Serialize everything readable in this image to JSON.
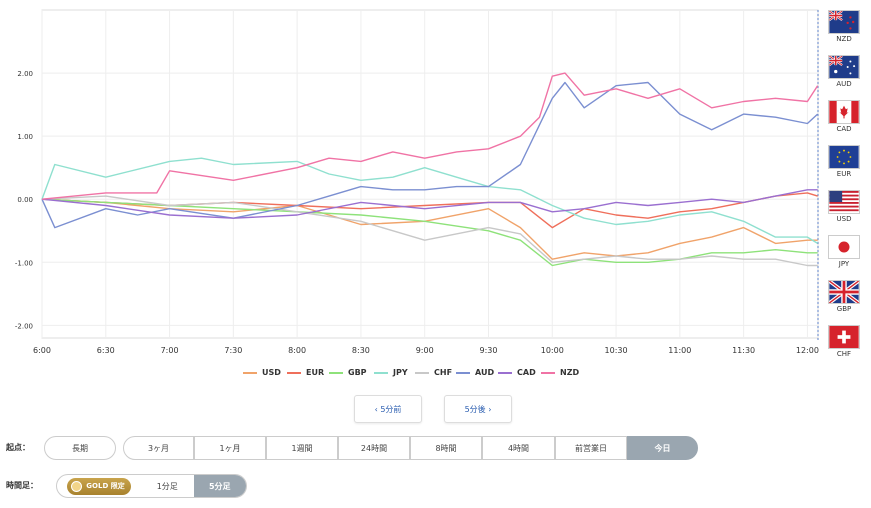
{
  "chart_data": {
    "type": "line",
    "x_ticks": [
      "6:00",
      "6:30",
      "7:00",
      "7:30",
      "8:00",
      "8:30",
      "9:00",
      "9:30",
      "10:00",
      "10:30",
      "11:00",
      "11:30",
      "12:00"
    ],
    "y_ticks": [
      "2.00",
      "1.00",
      "0.00",
      "-1.00",
      "-2.00"
    ],
    "ylim": [
      -2,
      2
    ],
    "xlim_hours": [
      6.0,
      12.083
    ],
    "grid": true,
    "legend_position": "bottom",
    "colors": {
      "USD": "#f0a36a",
      "EUR": "#ef6f5b",
      "GBP": "#8ee27a",
      "JPY": "#8fe0cf",
      "CHF": "#c8c8c8",
      "AUD": "#7b8fd1",
      "CAD": "#9a6fd0",
      "NZD": "#f073a5"
    },
    "series": [
      {
        "name": "USD",
        "x": [
          6.0,
          6.5,
          7.0,
          7.5,
          8.0,
          8.5,
          9.0,
          9.5,
          9.75,
          10.0,
          10.25,
          10.5,
          10.75,
          11.0,
          11.25,
          11.5,
          11.75,
          12.0,
          12.08
        ],
        "values": [
          0.0,
          -0.05,
          -0.15,
          -0.2,
          -0.1,
          -0.4,
          -0.35,
          -0.15,
          -0.45,
          -0.95,
          -0.85,
          -0.9,
          -0.85,
          -0.7,
          -0.6,
          -0.45,
          -0.7,
          -0.65,
          -0.65
        ]
      },
      {
        "name": "EUR",
        "x": [
          6.0,
          6.5,
          7.0,
          7.5,
          8.0,
          8.5,
          9.0,
          9.5,
          9.75,
          10.0,
          10.25,
          10.5,
          10.75,
          11.0,
          11.25,
          11.5,
          11.75,
          12.0,
          12.08
        ],
        "values": [
          0.0,
          -0.05,
          -0.1,
          -0.05,
          -0.1,
          -0.15,
          -0.1,
          -0.05,
          -0.05,
          -0.45,
          -0.15,
          -0.25,
          -0.3,
          -0.2,
          -0.15,
          -0.05,
          0.05,
          0.1,
          0.05
        ]
      },
      {
        "name": "GBP",
        "x": [
          6.0,
          6.5,
          7.0,
          7.5,
          8.0,
          8.5,
          9.0,
          9.5,
          9.75,
          10.0,
          10.25,
          10.5,
          10.75,
          11.0,
          11.25,
          11.5,
          11.75,
          12.0,
          12.08
        ],
        "values": [
          0.0,
          -0.05,
          -0.1,
          -0.15,
          -0.2,
          -0.25,
          -0.35,
          -0.5,
          -0.65,
          -1.05,
          -0.95,
          -1.0,
          -1.0,
          -0.95,
          -0.85,
          -0.85,
          -0.8,
          -0.85,
          -0.85
        ]
      },
      {
        "name": "JPY",
        "x": [
          6.0,
          6.1,
          6.5,
          7.0,
          7.25,
          7.5,
          8.0,
          8.25,
          8.5,
          8.75,
          9.0,
          9.25,
          9.5,
          9.75,
          10.0,
          10.25,
          10.5,
          10.75,
          11.0,
          11.25,
          11.5,
          11.75,
          12.0,
          12.08
        ],
        "values": [
          0.0,
          0.55,
          0.35,
          0.6,
          0.65,
          0.55,
          0.6,
          0.4,
          0.3,
          0.35,
          0.5,
          0.35,
          0.2,
          0.15,
          -0.1,
          -0.3,
          -0.4,
          -0.35,
          -0.25,
          -0.2,
          -0.35,
          -0.6,
          -0.6,
          -0.7
        ]
      },
      {
        "name": "CHF",
        "x": [
          6.0,
          6.5,
          7.0,
          7.5,
          8.0,
          8.5,
          9.0,
          9.5,
          9.75,
          10.0,
          10.25,
          10.5,
          10.75,
          11.0,
          11.25,
          11.5,
          11.75,
          12.0,
          12.08
        ],
        "values": [
          0.0,
          0.05,
          -0.1,
          -0.05,
          -0.2,
          -0.35,
          -0.65,
          -0.45,
          -0.55,
          -1.0,
          -0.95,
          -0.9,
          -0.95,
          -0.95,
          -0.9,
          -0.95,
          -0.95,
          -1.05,
          -1.05
        ]
      },
      {
        "name": "AUD",
        "x": [
          6.0,
          6.1,
          6.5,
          6.75,
          7.0,
          7.5,
          8.0,
          8.25,
          8.5,
          8.75,
          9.0,
          9.25,
          9.5,
          9.75,
          10.0,
          10.1,
          10.25,
          10.5,
          10.75,
          11.0,
          11.25,
          11.5,
          11.75,
          12.0,
          12.08
        ],
        "values": [
          0.0,
          -0.45,
          -0.15,
          -0.25,
          -0.15,
          -0.3,
          -0.1,
          0.05,
          0.2,
          0.15,
          0.15,
          0.2,
          0.2,
          0.55,
          1.6,
          1.85,
          1.45,
          1.8,
          1.85,
          1.35,
          1.1,
          1.35,
          1.3,
          1.2,
          1.35
        ]
      },
      {
        "name": "CAD",
        "x": [
          6.0,
          6.5,
          7.0,
          7.5,
          8.0,
          8.5,
          9.0,
          9.5,
          9.75,
          10.0,
          10.25,
          10.5,
          10.75,
          11.0,
          11.25,
          11.5,
          11.75,
          12.0,
          12.08
        ],
        "values": [
          0.0,
          -0.1,
          -0.25,
          -0.3,
          -0.25,
          -0.05,
          -0.15,
          -0.05,
          -0.05,
          -0.2,
          -0.15,
          -0.05,
          -0.1,
          -0.05,
          0.0,
          -0.05,
          0.05,
          0.15,
          0.15
        ]
      },
      {
        "name": "NZD",
        "x": [
          6.0,
          6.5,
          6.9,
          7.0,
          7.5,
          8.0,
          8.25,
          8.5,
          8.75,
          9.0,
          9.25,
          9.5,
          9.75,
          9.9,
          10.0,
          10.1,
          10.25,
          10.5,
          10.75,
          11.0,
          11.25,
          11.5,
          11.75,
          12.0,
          12.08
        ],
        "values": [
          0.0,
          0.1,
          0.1,
          0.45,
          0.3,
          0.5,
          0.65,
          0.6,
          0.75,
          0.65,
          0.75,
          0.8,
          1.0,
          1.3,
          1.95,
          2.0,
          1.65,
          1.75,
          1.6,
          1.75,
          1.45,
          1.55,
          1.6,
          1.55,
          1.8
        ]
      }
    ]
  },
  "flags": [
    {
      "code": "NZD",
      "icon": "nz-flag-icon"
    },
    {
      "code": "AUD",
      "icon": "au-flag-icon"
    },
    {
      "code": "CAD",
      "icon": "ca-flag-icon"
    },
    {
      "code": "EUR",
      "icon": "eu-flag-icon"
    },
    {
      "code": "USD",
      "icon": "us-flag-icon"
    },
    {
      "code": "JPY",
      "icon": "jp-flag-icon"
    },
    {
      "code": "GBP",
      "icon": "gb-flag-icon"
    },
    {
      "code": "CHF",
      "icon": "ch-flag-icon"
    }
  ],
  "nav": {
    "prev": "‹ 5分前",
    "next": "5分後 ›"
  },
  "start_point": {
    "label": "起点：",
    "options": [
      "長期",
      "3ヶ月",
      "1ヶ月",
      "1週間",
      "24時間",
      "8時間",
      "4時間",
      "前営業日",
      "今日"
    ],
    "selected": "今日"
  },
  "timeframe": {
    "label": "時間足：",
    "gold_badge": "GOLD 限定",
    "options": [
      "1分足",
      "5分足"
    ],
    "selected": "5分足"
  }
}
